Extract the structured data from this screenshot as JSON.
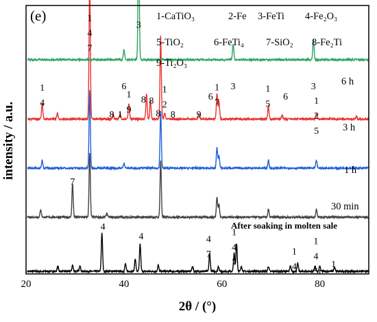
{
  "chart_data": {
    "type": "line",
    "panel_label": "(e)",
    "xlabel": "2θ / (°)",
    "ylabel": "intensity / a.u.",
    "xlim": [
      20,
      90
    ],
    "x_ticks": [
      20,
      40,
      60,
      80
    ],
    "y_ticks": false,
    "grid": false,
    "legend": [
      "1-CaTiO₃",
      "2-Fe",
      "3-FeTi",
      "4-Fe₂O₃",
      "5-TiO₂",
      "6-FeTi₄",
      "7-SiO₂",
      "8-Fe₂Ti",
      "9-Ti₂O₃"
    ],
    "series": [
      {
        "name": "After soaking in molten sale",
        "color": "#000000",
        "baseline": 0.5,
        "peaks": [
          [
            26.5,
            1.0
          ],
          [
            29.5,
            1.2
          ],
          [
            31.0,
            1.2
          ],
          [
            35.5,
            7.5
          ],
          [
            40.3,
            1.5
          ],
          [
            42.3,
            2.5
          ],
          [
            43.3,
            5.3
          ],
          [
            47.0,
            1.2
          ],
          [
            54.0,
            1.0
          ],
          [
            57.5,
            3.5
          ],
          [
            59.3,
            1.0
          ],
          [
            62.5,
            3.5
          ],
          [
            63.0,
            5.5
          ],
          [
            64.0,
            1.0
          ],
          [
            69.5,
            1.0
          ],
          [
            74.0,
            1.0
          ],
          [
            75.5,
            1.5
          ],
          [
            79.0,
            1.0
          ],
          [
            80.0,
            1.0
          ],
          [
            83.0,
            0.8
          ]
        ]
      },
      {
        "name": "30 min",
        "color": "#404040",
        "baseline": 11.0,
        "peaks": [
          [
            23.0,
            1.5
          ],
          [
            29.5,
            6.5
          ],
          [
            33.0,
            12.5
          ],
          [
            36.5,
            0.8
          ],
          [
            47.5,
            11.0
          ],
          [
            59.0,
            4.0
          ],
          [
            59.4,
            2.5
          ],
          [
            69.5,
            1.5
          ],
          [
            79.3,
            1.5
          ]
        ]
      },
      {
        "name": "1 h",
        "color": "#1f5fd6",
        "baseline": 20.5,
        "peaks": [
          [
            23.3,
            1.5
          ],
          [
            33.0,
            15.0
          ],
          [
            40.0,
            1.0
          ],
          [
            47.5,
            11.0
          ],
          [
            59.0,
            4.0
          ],
          [
            59.4,
            2.5
          ],
          [
            69.5,
            1.5
          ],
          [
            79.3,
            1.5
          ]
        ]
      },
      {
        "name": "3 h",
        "color": "#e8302f",
        "baseline": 30.0,
        "peaks": [
          [
            23.3,
            3.0
          ],
          [
            26.4,
            1.2
          ],
          [
            33.0,
            27.0
          ],
          [
            37.8,
            1.0
          ],
          [
            39.2,
            1.0
          ],
          [
            41.0,
            3.0
          ],
          [
            44.6,
            5.0
          ],
          [
            45.4,
            3.5
          ],
          [
            47.5,
            16.0
          ],
          [
            48.3,
            1.2
          ],
          [
            55.3,
            1.0
          ],
          [
            59.0,
            5.0
          ],
          [
            59.4,
            3.5
          ],
          [
            69.5,
            2.5
          ],
          [
            72.3,
            0.8
          ],
          [
            79.3,
            1.0
          ],
          [
            87.5,
            0.5
          ]
        ]
      },
      {
        "name": "6 h",
        "color": "#2ca35f",
        "baseline": 41.5,
        "peaks": [
          [
            40.0,
            2.0
          ],
          [
            43.0,
            24.0
          ],
          [
            62.3,
            3.0
          ],
          [
            78.7,
            4.0
          ]
        ]
      }
    ],
    "annotations": [
      {
        "x": 33.0,
        "stack": 49.0,
        "lines": [
          "1",
          "4",
          "7"
        ]
      },
      {
        "x": 43.0,
        "stack": 47.7,
        "lines": [
          "3"
        ]
      },
      {
        "x": 40.0,
        "stack": 35.8,
        "lines": [
          "6"
        ]
      },
      {
        "x": 57.7,
        "stack": 33.8,
        "lines": [
          "6"
        ]
      },
      {
        "x": 62.3,
        "stack": 35.8,
        "lines": [
          "3"
        ]
      },
      {
        "x": 73.0,
        "stack": 33.8,
        "lines": [
          "6"
        ]
      },
      {
        "x": 78.7,
        "stack": 35.8,
        "lines": [
          "3"
        ]
      },
      {
        "x": 23.3,
        "stack": 35.5,
        "lines": [
          "1",
          "4"
        ]
      },
      {
        "x": 37.5,
        "stack": 30.3,
        "lines": [
          "8"
        ]
      },
      {
        "x": 39.2,
        "stack": 30.3,
        "lines": [
          "1"
        ]
      },
      {
        "x": 41.0,
        "stack": 34.2,
        "lines": [
          "1",
          "9"
        ]
      },
      {
        "x": 44.0,
        "stack": 33.2,
        "lines": [
          "8"
        ]
      },
      {
        "x": 45.6,
        "stack": 33.0,
        "lines": [
          "8"
        ]
      },
      {
        "x": 47.0,
        "stack": 30.5,
        "lines": [
          "8"
        ]
      },
      {
        "x": 48.3,
        "stack": 35.2,
        "lines": [
          "1",
          "2"
        ]
      },
      {
        "x": 50.0,
        "stack": 30.3,
        "lines": [
          "8"
        ]
      },
      {
        "x": 55.3,
        "stack": 30.3,
        "lines": [
          "9"
        ]
      },
      {
        "x": 59.0,
        "stack": 35.6,
        "lines": [
          "1",
          "7"
        ]
      },
      {
        "x": 69.4,
        "stack": 35.3,
        "lines": [
          "1",
          "5"
        ]
      },
      {
        "x": 79.3,
        "stack": 33.0,
        "lines": [
          "1",
          "2",
          "5"
        ]
      },
      {
        "x": 29.5,
        "stack": 17.3,
        "lines": [
          "7"
        ]
      },
      {
        "x": 35.7,
        "stack": 8.6,
        "lines": [
          "4"
        ]
      },
      {
        "x": 43.5,
        "stack": 6.7,
        "lines": [
          "4"
        ]
      },
      {
        "x": 57.3,
        "stack": 6.2,
        "lines": [
          "4",
          "7"
        ]
      },
      {
        "x": 62.5,
        "stack": 7.5,
        "lines": [
          "1",
          "4",
          "7"
        ]
      },
      {
        "x": 74.8,
        "stack": 3.8,
        "lines": [
          "1",
          "4"
        ]
      },
      {
        "x": 79.2,
        "stack": 5.8,
        "lines": [
          "1",
          "4",
          "5"
        ]
      },
      {
        "x": 82.8,
        "stack": 1.3,
        "lines": [
          "1"
        ]
      }
    ]
  }
}
